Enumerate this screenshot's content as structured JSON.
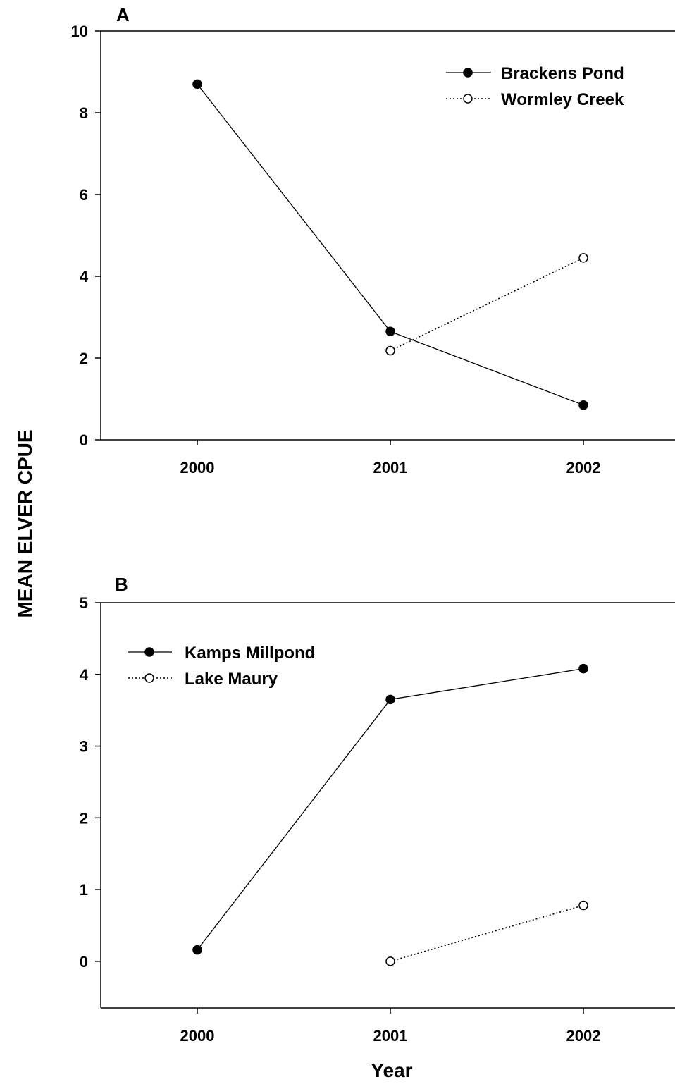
{
  "figure": {
    "ylabel": "MEAN ELVER CPUE",
    "xlabel": "Year"
  },
  "chart_data": [
    {
      "type": "line",
      "panel": "A",
      "categories": [
        "2000",
        "2001",
        "2002"
      ],
      "ylim": [
        0,
        10
      ],
      "yticks": [
        "0",
        "2",
        "4",
        "6",
        "8",
        "10"
      ],
      "grid": false,
      "legend": "top-right",
      "series": [
        {
          "name": "Brackens Pond",
          "marker": "filled-circle",
          "line": "solid",
          "values": [
            8.7,
            2.65,
            0.85
          ]
        },
        {
          "name": "Wormley Creek",
          "marker": "open-circle",
          "line": "dotted",
          "values": [
            null,
            2.18,
            4.45
          ]
        }
      ]
    },
    {
      "type": "line",
      "panel": "B",
      "categories": [
        "2000",
        "2001",
        "2002"
      ],
      "ylim": [
        -0.65,
        5
      ],
      "yticks": [
        "0",
        "1",
        "2",
        "3",
        "4",
        "5"
      ],
      "grid": false,
      "legend": "top-left",
      "series": [
        {
          "name": "Kamps Millpond",
          "marker": "filled-circle",
          "line": "solid",
          "values": [
            0.16,
            3.65,
            4.08
          ]
        },
        {
          "name": "Lake Maury",
          "marker": "open-circle",
          "line": "dotted",
          "values": [
            null,
            0.0,
            0.78
          ]
        }
      ]
    }
  ]
}
